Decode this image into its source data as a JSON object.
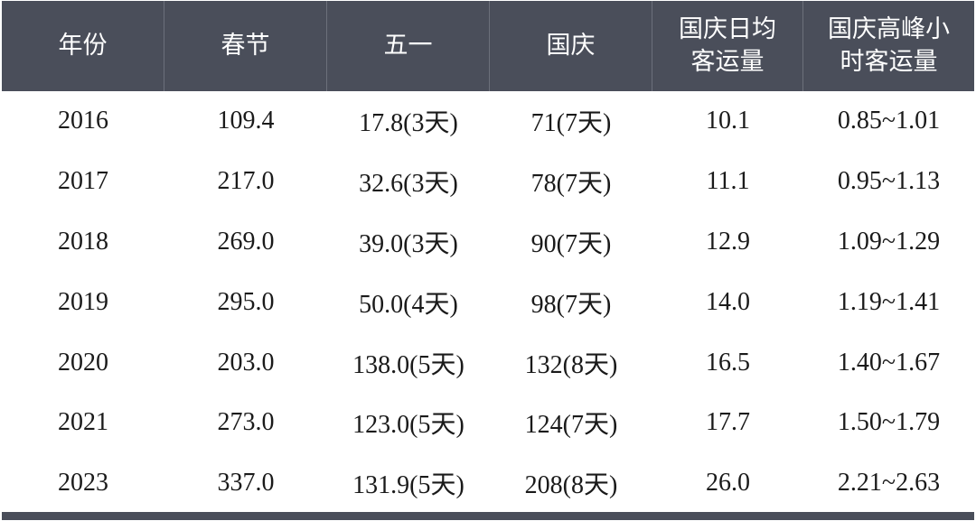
{
  "table": {
    "headers": [
      "年份",
      "春节",
      "五一",
      "国庆",
      "国庆日均\n客运量",
      "国庆高峰小\n时客运量"
    ],
    "rows": [
      [
        "2016",
        "109.4",
        "17.8(3天)",
        "71(7天)",
        "10.1",
        "0.85~1.01"
      ],
      [
        "2017",
        "217.0",
        "32.6(3天)",
        "78(7天)",
        "11.1",
        "0.95~1.13"
      ],
      [
        "2018",
        "269.0",
        "39.0(3天)",
        "90(7天)",
        "12.9",
        "1.09~1.29"
      ],
      [
        "2019",
        "295.0",
        "50.0(4天)",
        "98(7天)",
        "14.0",
        "1.19~1.41"
      ],
      [
        "2020",
        "203.0",
        "138.0(5天)",
        "132(8天)",
        "16.5",
        "1.40~1.67"
      ],
      [
        "2021",
        "273.0",
        "123.0(5天)",
        "124(7天)",
        "17.7",
        "1.50~1.79"
      ],
      [
        "2023",
        "337.0",
        "131.9(5天)",
        "208(8天)",
        "26.0",
        "2.21~2.63"
      ]
    ],
    "colors": {
      "header_bg": "#4a4e5a",
      "header_text": "#ffffff",
      "body_text": "#1a1a1a"
    }
  }
}
